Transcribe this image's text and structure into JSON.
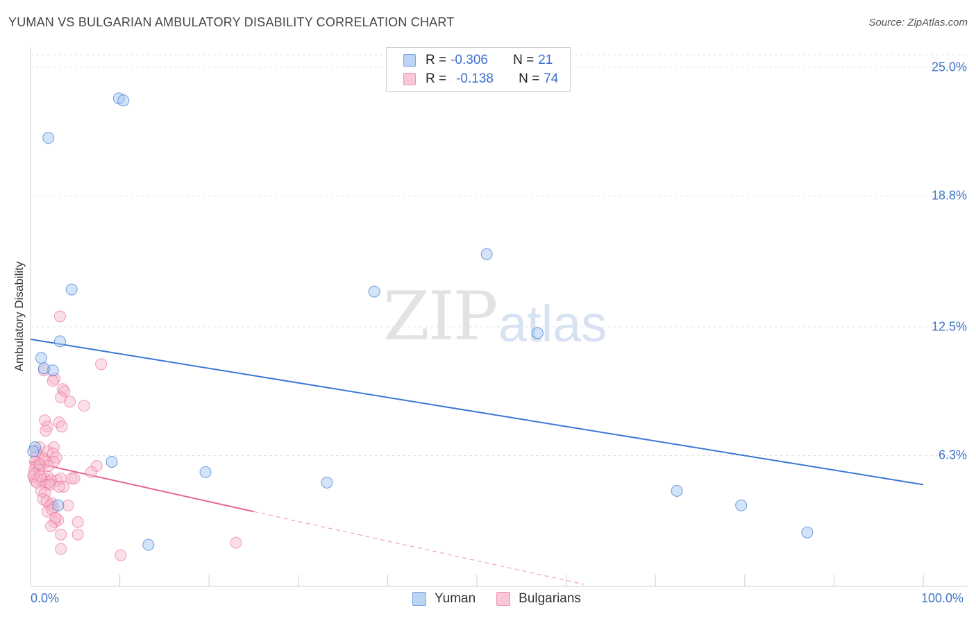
{
  "title": "YUMAN VS BULGARIAN AMBULATORY DISABILITY CORRELATION CHART",
  "source": "Source: ZipAtlas.com",
  "watermark": {
    "zip": "ZIP",
    "atlas": "atlas"
  },
  "colors": {
    "yuman": "#3a78d4",
    "bulgarians": "#e8648f",
    "yuman_fill": "#aac8f0",
    "bulgarians_fill": "#f6b8cb",
    "tick": "#3e73c7"
  },
  "legend": {
    "rows": [
      {
        "r_label": "R = ",
        "r_value": "-0.306",
        "n_label": "N = ",
        "n_value": "21"
      },
      {
        "r_label": "R = ",
        "r_value": "-0.138",
        "n_label": "N = ",
        "n_value": "74"
      }
    ]
  },
  "bottom_legend": {
    "yuman": "Yuman",
    "bulgarians": "Bulgarians"
  },
  "chart_data": {
    "type": "scatter",
    "title": "YUMAN VS BULGARIAN AMBULATORY DISABILITY CORRELATION CHART",
    "xlabel": "",
    "ylabel": "Ambulatory Disability",
    "xlim": [
      0,
      100
    ],
    "ylim": [
      0,
      25.9
    ],
    "x_tick_labels": [
      "0.0%",
      "100.0%"
    ],
    "y_ticks": [
      6.3,
      12.5,
      18.8,
      25.0
    ],
    "y_tick_labels": [
      "6.3%",
      "12.5%",
      "18.8%",
      "25.0%"
    ],
    "grid": true,
    "series": [
      {
        "name": "Yuman",
        "r": -0.306,
        "n": 21,
        "points": [
          [
            2.0,
            21.6
          ],
          [
            9.9,
            23.5
          ],
          [
            10.4,
            23.4
          ],
          [
            4.6,
            14.3
          ],
          [
            51.1,
            16.0
          ],
          [
            38.5,
            14.2
          ],
          [
            3.3,
            11.8
          ],
          [
            56.8,
            12.2
          ],
          [
            1.2,
            11.0
          ],
          [
            2.5,
            10.4
          ],
          [
            0.5,
            6.7
          ],
          [
            9.1,
            6.0
          ],
          [
            19.6,
            5.5
          ],
          [
            33.2,
            5.0
          ],
          [
            72.4,
            4.6
          ],
          [
            79.6,
            3.9
          ],
          [
            3.1,
            3.9
          ],
          [
            87.0,
            2.6
          ],
          [
            13.2,
            2.0
          ],
          [
            1.5,
            10.5
          ],
          [
            0.3,
            6.5
          ]
        ],
        "trend": {
          "x": [
            0,
            100
          ],
          "y": [
            11.9,
            4.9
          ]
        }
      },
      {
        "name": "Bulgarians",
        "r": -0.138,
        "n": 74,
        "points": [
          [
            3.3,
            13.0
          ],
          [
            7.9,
            10.7
          ],
          [
            1.5,
            10.4
          ],
          [
            2.7,
            10.0
          ],
          [
            2.5,
            9.9
          ],
          [
            3.6,
            9.5
          ],
          [
            3.8,
            9.4
          ],
          [
            3.4,
            9.1
          ],
          [
            4.4,
            8.9
          ],
          [
            6.0,
            8.7
          ],
          [
            1.6,
            8.0
          ],
          [
            3.2,
            7.9
          ],
          [
            1.9,
            7.7
          ],
          [
            3.5,
            7.7
          ],
          [
            1.7,
            7.5
          ],
          [
            1.0,
            6.7
          ],
          [
            2.6,
            6.7
          ],
          [
            1.9,
            6.5
          ],
          [
            2.5,
            6.4
          ],
          [
            0.7,
            6.3
          ],
          [
            1.3,
            6.2
          ],
          [
            2.9,
            6.2
          ],
          [
            0.5,
            6.0
          ],
          [
            1.8,
            6.0
          ],
          [
            2.6,
            6.0
          ],
          [
            0.6,
            5.8
          ],
          [
            1.1,
            5.8
          ],
          [
            0.4,
            5.6
          ],
          [
            0.9,
            5.6
          ],
          [
            7.4,
            5.8
          ],
          [
            6.8,
            5.5
          ],
          [
            0.3,
            5.3
          ],
          [
            0.8,
            5.2
          ],
          [
            1.6,
            5.2
          ],
          [
            1.9,
            5.3
          ],
          [
            3.0,
            5.1
          ],
          [
            0.5,
            5.1
          ],
          [
            1.3,
            5.1
          ],
          [
            2.1,
            5.0
          ],
          [
            2.3,
            5.1
          ],
          [
            1.7,
            4.9
          ],
          [
            2.2,
            4.9
          ],
          [
            0.7,
            5.0
          ],
          [
            3.4,
            5.2
          ],
          [
            4.6,
            5.2
          ],
          [
            3.7,
            4.8
          ],
          [
            1.2,
            4.6
          ],
          [
            1.6,
            4.5
          ],
          [
            1.4,
            4.2
          ],
          [
            1.8,
            4.1
          ],
          [
            2.4,
            4.0
          ],
          [
            2.2,
            3.9
          ],
          [
            4.2,
            3.9
          ],
          [
            2.6,
            3.8
          ],
          [
            1.9,
            3.6
          ],
          [
            2.4,
            3.7
          ],
          [
            3.1,
            3.2
          ],
          [
            2.7,
            3.1
          ],
          [
            5.3,
            3.1
          ],
          [
            2.3,
            2.9
          ],
          [
            3.4,
            2.5
          ],
          [
            5.3,
            2.5
          ],
          [
            23.0,
            2.1
          ],
          [
            3.4,
            1.8
          ],
          [
            10.1,
            1.5
          ],
          [
            0.4,
            5.4
          ],
          [
            1.1,
            5.3
          ],
          [
            1.5,
            6.1
          ],
          [
            2.0,
            5.8
          ],
          [
            0.6,
            6.5
          ],
          [
            2.8,
            3.3
          ],
          [
            3.2,
            4.8
          ],
          [
            4.9,
            5.2
          ],
          [
            1.0,
            5.9
          ]
        ],
        "trend": {
          "x": [
            0,
            25
          ],
          "y": [
            6.0,
            3.6
          ]
        },
        "trend_dashed": {
          "x": [
            25,
            62
          ],
          "y": [
            3.6,
            0.1
          ]
        }
      }
    ]
  }
}
